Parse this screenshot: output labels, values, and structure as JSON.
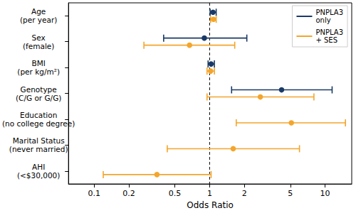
{
  "chart_data": {
    "type": "forest",
    "x_label": "Odds Ratio",
    "log": "x",
    "grid": false,
    "legend": "upper right",
    "categories": [
      "Age\n(per year)",
      "Sex\n(female)",
      "BMI\n(per kg/m²)",
      "Genotype\n(C/G or G/G)",
      "Education\n(no college degree)",
      "Marital Status\n(never married)",
      "AHI\n(<$30,000)"
    ],
    "series": [
      {
        "name": "PNPLA3\nonly",
        "color": "#1a3a66",
        "marker": "circle",
        "values": [
          1.07,
          0.9,
          1.03,
          4.2,
          null,
          null,
          null
        ],
        "ci_low": [
          1.01,
          0.4,
          0.97,
          1.55,
          null,
          null,
          null
        ],
        "ci_high": [
          1.14,
          2.1,
          1.1,
          11.5,
          null,
          null,
          null
        ]
      },
      {
        "name": "PNPLA3\n+ SES",
        "color": "#f4a52a",
        "marker": "circle",
        "values": [
          1.08,
          0.67,
          1.02,
          2.75,
          5.1,
          1.6,
          0.35
        ],
        "ci_low": [
          1.02,
          0.27,
          0.95,
          0.95,
          1.7,
          0.43,
          0.12
        ],
        "ci_high": [
          1.14,
          1.65,
          1.1,
          8.0,
          15.0,
          6.0,
          1.03
        ]
      }
    ],
    "reference_line": 1,
    "xlim": [
      0.06,
      17
    ],
    "xticks": [
      0.1,
      0.2,
      0.5,
      1,
      2,
      5,
      10
    ]
  }
}
